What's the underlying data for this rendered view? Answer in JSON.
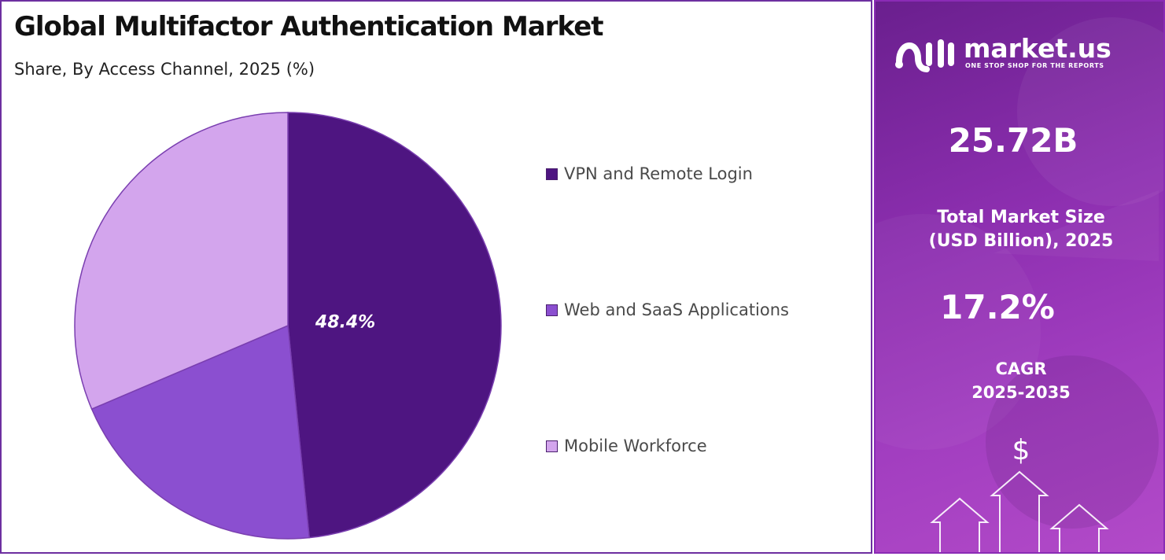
{
  "chart_data": {
    "type": "pie",
    "title": "Global Multifactor Authentication Market",
    "subtitle": "Share, By Access Channel, 2025 (%)",
    "categories": [
      "VPN and Remote Login",
      "Web and SaaS Applications",
      "Mobile Workforce"
    ],
    "values": [
      48.4,
      20.2,
      31.4
    ],
    "colors": [
      "#4e1581",
      "#8b4fd0",
      "#d3a5ed"
    ],
    "data_labels": [
      "48.4%",
      "",
      ""
    ],
    "legend_position": "right"
  },
  "sidebar": {
    "brand_name": "market.us",
    "brand_tagline": "ONE STOP SHOP FOR THE REPORTS",
    "market_size_value": "25.72B",
    "market_size_label_line1": "Total Market Size",
    "market_size_label_line2": "(USD Billion), 2025",
    "cagr_value": "17.2%",
    "cagr_label_line1": "CAGR",
    "cagr_label_line2": "2025-2035",
    "currency_symbol": "$"
  }
}
